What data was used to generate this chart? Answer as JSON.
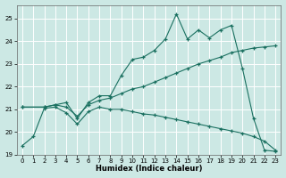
{
  "xlabel": "Humidex (Indice chaleur)",
  "background_color": "#cce8e4",
  "grid_color": "#ffffff",
  "line_color": "#1a7060",
  "xlim": [
    -0.5,
    23.5
  ],
  "ylim": [
    19.0,
    25.6
  ],
  "yticks": [
    19,
    20,
    21,
    22,
    23,
    24,
    25
  ],
  "xticks": [
    0,
    1,
    2,
    3,
    4,
    5,
    6,
    7,
    8,
    9,
    10,
    11,
    12,
    13,
    14,
    15,
    16,
    17,
    18,
    19,
    20,
    21,
    22,
    23
  ],
  "series": [
    {
      "x": [
        0,
        2,
        3,
        4,
        5,
        6,
        7,
        8,
        9,
        10,
        11,
        12,
        13,
        14,
        15,
        16,
        17,
        18,
        19,
        20,
        21,
        22,
        23
      ],
      "y": [
        21.1,
        21.1,
        21.2,
        21.3,
        20.6,
        21.3,
        21.6,
        21.6,
        22.5,
        23.2,
        23.3,
        23.6,
        24.1,
        25.2,
        24.1,
        24.5,
        24.15,
        24.5,
        24.7,
        22.8,
        20.6,
        19.2,
        19.15
      ]
    },
    {
      "x": [
        0,
        2,
        3,
        4,
        5,
        6,
        7,
        8,
        9,
        10,
        11,
        12,
        13,
        14,
        15,
        16,
        17,
        18,
        19,
        20,
        21,
        22,
        23
      ],
      "y": [
        21.1,
        21.1,
        21.2,
        21.1,
        20.7,
        21.2,
        21.4,
        21.5,
        21.7,
        21.9,
        22.0,
        22.2,
        22.4,
        22.6,
        22.8,
        23.0,
        23.15,
        23.3,
        23.5,
        23.6,
        23.7,
        23.75,
        23.8
      ]
    },
    {
      "x": [
        0,
        1,
        2,
        3,
        4,
        5,
        6,
        7,
        8,
        9,
        10,
        11,
        12,
        13,
        14,
        15,
        16,
        17,
        18,
        19,
        20,
        21,
        22,
        23
      ],
      "y": [
        19.4,
        19.8,
        21.05,
        21.1,
        20.85,
        20.35,
        20.9,
        21.1,
        21.0,
        21.0,
        20.9,
        20.8,
        20.75,
        20.65,
        20.55,
        20.45,
        20.35,
        20.25,
        20.15,
        20.05,
        19.95,
        19.8,
        19.6,
        19.2
      ]
    }
  ]
}
